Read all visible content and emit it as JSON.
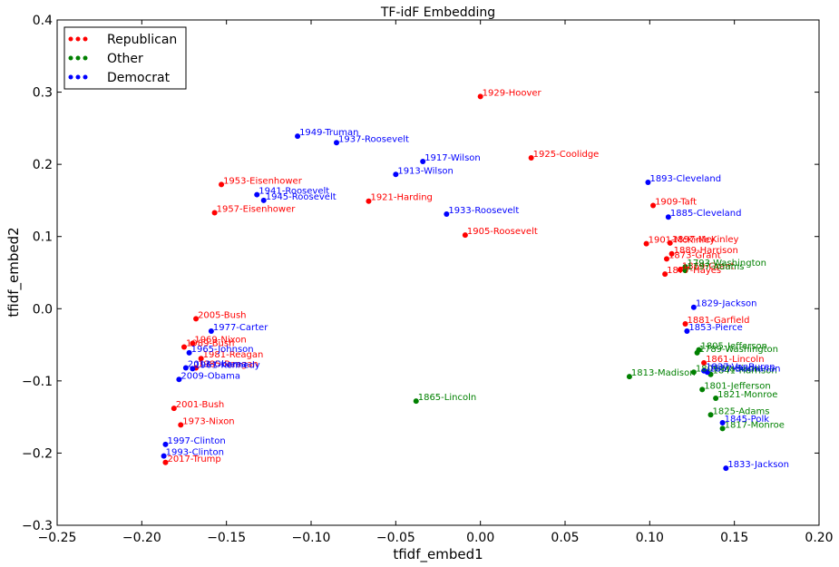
{
  "chart_data": {
    "type": "scatter",
    "title": "TF-idF Embedding",
    "xlabel": "tfidf_embed1",
    "ylabel": "tfidf_embed2",
    "xlim": [
      -0.25,
      0.2
    ],
    "ylim": [
      -0.3,
      0.4
    ],
    "xticks": [
      -0.25,
      -0.2,
      -0.15,
      -0.1,
      -0.05,
      0.0,
      0.05,
      0.1,
      0.15,
      0.2
    ],
    "xtick_labels": [
      "−0.25",
      "−0.20",
      "−0.15",
      "−0.10",
      "−0.05",
      "0.00",
      "0.05",
      "0.10",
      "0.15",
      "0.20"
    ],
    "yticks": [
      -0.3,
      -0.2,
      -0.1,
      0.0,
      0.1,
      0.2,
      0.3,
      0.4
    ],
    "ytick_labels": [
      "−0.3",
      "−0.2",
      "−0.1",
      "0.0",
      "0.1",
      "0.2",
      "0.3",
      "0.4"
    ],
    "grid": false,
    "legend_position": "top-left",
    "colors": {
      "Republican": "#ff0000",
      "Other": "#008000",
      "Democrat": "#0000ff"
    },
    "series": [
      {
        "name": "Republican",
        "points": [
          {
            "label": "1929-Hoover",
            "x": 0.0,
            "y": 0.294
          },
          {
            "label": "1925-Coolidge",
            "x": 0.03,
            "y": 0.209
          },
          {
            "label": "1953-Eisenhower",
            "x": -0.153,
            "y": 0.172
          },
          {
            "label": "1957-Eisenhower",
            "x": -0.157,
            "y": 0.133
          },
          {
            "label": "1921-Harding",
            "x": -0.066,
            "y": 0.149
          },
          {
            "label": "1905-Roosevelt",
            "x": -0.009,
            "y": 0.102
          },
          {
            "label": "1909-Taft",
            "x": 0.102,
            "y": 0.143
          },
          {
            "label": "1901-McKinley",
            "x": 0.098,
            "y": 0.09
          },
          {
            "label": "1897-McKinley",
            "x": 0.112,
            "y": 0.091
          },
          {
            "label": "1889-Harrison",
            "x": 0.113,
            "y": 0.076
          },
          {
            "label": "1873-Grant",
            "x": 0.11,
            "y": 0.069
          },
          {
            "label": "1869-Grant",
            "x": 0.118,
            "y": 0.054
          },
          {
            "label": "1877-Hayes",
            "x": 0.109,
            "y": 0.048
          },
          {
            "label": "1881-Garfield",
            "x": 0.121,
            "y": -0.021
          },
          {
            "label": "1861-Lincoln",
            "x": 0.132,
            "y": -0.075
          },
          {
            "label": "2005-Bush",
            "x": -0.168,
            "y": -0.014
          },
          {
            "label": "1969-Nixon",
            "x": -0.17,
            "y": -0.048
          },
          {
            "label": "1989-Bush",
            "x": -0.175,
            "y": -0.053
          },
          {
            "label": "1981-Reagan",
            "x": -0.165,
            "y": -0.069
          },
          {
            "label": "1985-Reagan",
            "x": -0.168,
            "y": -0.082
          },
          {
            "label": "2001-Bush",
            "x": -0.181,
            "y": -0.138
          },
          {
            "label": "1973-Nixon",
            "x": -0.177,
            "y": -0.161
          },
          {
            "label": "2017-Trump",
            "x": -0.186,
            "y": -0.213
          }
        ]
      },
      {
        "name": "Other",
        "points": [
          {
            "label": "1793-Washington",
            "x": 0.121,
            "y": 0.058
          },
          {
            "label": "1797-Adams",
            "x": 0.121,
            "y": 0.053
          },
          {
            "label": "1805-Jefferson",
            "x": 0.129,
            "y": -0.057
          },
          {
            "label": "1789-Washington",
            "x": 0.128,
            "y": -0.061
          },
          {
            "label": "1813-Madison",
            "x": 0.088,
            "y": -0.094
          },
          {
            "label": "1809-Madison",
            "x": 0.126,
            "y": -0.088
          },
          {
            "label": "1841-Harrison",
            "x": 0.136,
            "y": -0.091
          },
          {
            "label": "1801-Jefferson",
            "x": 0.131,
            "y": -0.112
          },
          {
            "label": "1821-Monroe",
            "x": 0.139,
            "y": -0.124
          },
          {
            "label": "1825-Adams",
            "x": 0.136,
            "y": -0.147
          },
          {
            "label": "1817-Monroe",
            "x": 0.143,
            "y": -0.166
          },
          {
            "label": "1865-Lincoln",
            "x": -0.038,
            "y": -0.128
          }
        ]
      },
      {
        "name": "Democrat",
        "points": [
          {
            "label": "1949-Truman",
            "x": -0.108,
            "y": 0.239
          },
          {
            "label": "1937-Roosevelt",
            "x": -0.085,
            "y": 0.23
          },
          {
            "label": "1917-Wilson",
            "x": -0.034,
            "y": 0.204
          },
          {
            "label": "1913-Wilson",
            "x": -0.05,
            "y": 0.186
          },
          {
            "label": "1941-Roosevelt",
            "x": -0.132,
            "y": 0.158
          },
          {
            "label": "1945-Roosevelt",
            "x": -0.128,
            "y": 0.15
          },
          {
            "label": "1933-Roosevelt",
            "x": -0.02,
            "y": 0.131
          },
          {
            "label": "1893-Cleveland",
            "x": 0.099,
            "y": 0.175
          },
          {
            "label": "1885-Cleveland",
            "x": 0.111,
            "y": 0.127
          },
          {
            "label": "1829-Jackson",
            "x": 0.126,
            "y": 0.002
          },
          {
            "label": "1853-Pierce",
            "x": 0.122,
            "y": -0.031
          },
          {
            "label": "1837-VanBuren",
            "x": 0.132,
            "y": -0.086
          },
          {
            "label": "1857-Buchanan",
            "x": 0.134,
            "y": -0.088
          },
          {
            "label": "1845-Polk",
            "x": 0.143,
            "y": -0.158
          },
          {
            "label": "1833-Jackson",
            "x": 0.145,
            "y": -0.221
          },
          {
            "label": "1977-Carter",
            "x": -0.159,
            "y": -0.031
          },
          {
            "label": "1965-Johnson",
            "x": -0.172,
            "y": -0.061
          },
          {
            "label": "2013-Obama",
            "x": -0.174,
            "y": -0.082
          },
          {
            "label": "1961-Kennedy",
            "x": -0.17,
            "y": -0.083
          },
          {
            "label": "2009-Obama",
            "x": -0.178,
            "y": -0.098
          },
          {
            "label": "1997-Clinton",
            "x": -0.186,
            "y": -0.188
          },
          {
            "label": "1993-Clinton",
            "x": -0.187,
            "y": -0.204
          }
        ]
      }
    ]
  }
}
